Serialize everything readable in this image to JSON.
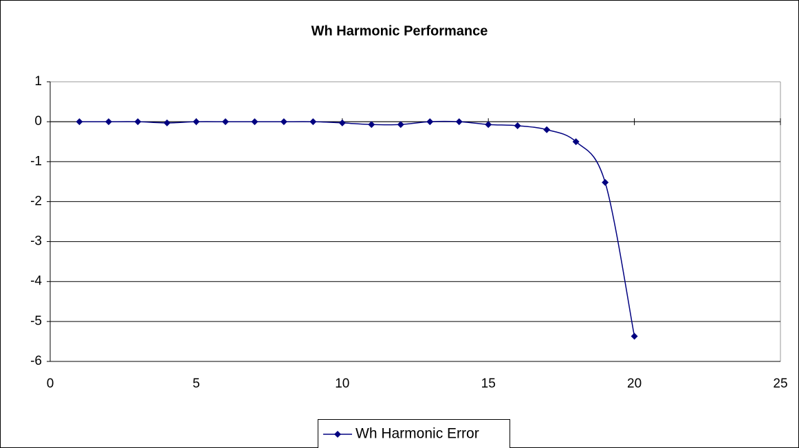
{
  "chart_data": {
    "type": "line",
    "title": "Wh Harmonic Performance",
    "x": [
      1,
      2,
      3,
      4,
      5,
      6,
      7,
      8,
      9,
      10,
      11,
      12,
      13,
      14,
      15,
      16,
      17,
      18,
      19,
      20
    ],
    "series": [
      {
        "name": "Wh Harmonic Error",
        "color": "#000080",
        "values": [
          0,
          0,
          0,
          -0.03,
          0,
          0,
          0,
          0,
          0,
          -0.03,
          -0.07,
          -0.07,
          0,
          0,
          -0.07,
          -0.1,
          -0.2,
          -0.5,
          -1.52,
          -5.37
        ]
      }
    ],
    "xlim": [
      0,
      25
    ],
    "xticks": [
      0,
      5,
      10,
      15,
      20,
      25
    ],
    "ylim": [
      -6,
      1
    ],
    "yticks": [
      -6,
      -5,
      -4,
      -3,
      -2,
      -1,
      0,
      1
    ],
    "grid": true,
    "smooth": true,
    "legend": "bottom"
  }
}
